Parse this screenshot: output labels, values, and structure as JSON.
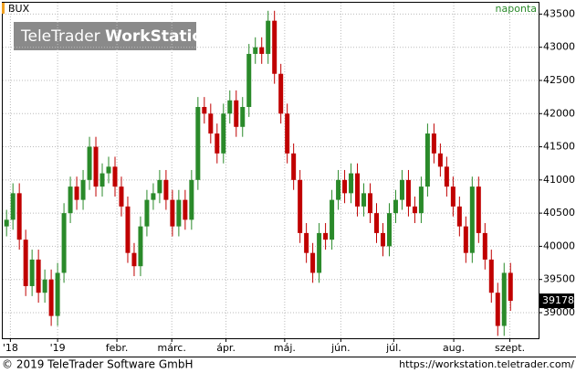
{
  "chart_data": {
    "type": "candlestick",
    "title": "BUX",
    "subtitle": "naponta",
    "logo": {
      "light": "TeleTrader",
      "bold": "WorkStation"
    },
    "footer_left": "© 2019 TeleTrader Software GmbH",
    "footer_right": "https://workstation.teletrader.com/",
    "up_color": "#2a8a2a",
    "down_color": "#c00000",
    "grid": true,
    "last_value_label": true,
    "open": [
      40300,
      40400,
      40800,
      40100,
      39400,
      39800,
      39300,
      39500,
      38950,
      39600,
      40500,
      40900,
      40700,
      41000,
      41500,
      40900,
      41100,
      41200,
      40900,
      40600,
      39900,
      39700,
      40300,
      40700,
      40800,
      41000,
      40700,
      40300,
      40700,
      40400,
      41000,
      42100,
      42000,
      41700,
      41400,
      42000,
      42200,
      41800,
      42100,
      42900,
      43000,
      42900,
      43400,
      42600,
      42000,
      41400,
      41000,
      40200,
      39900,
      39600,
      40200,
      40100,
      40700,
      41000,
      40800,
      41100,
      40600,
      40800,
      40500,
      40200,
      40000,
      40500,
      40700,
      41000,
      40600,
      40500,
      40900,
      41700,
      41400,
      41200,
      40900,
      40600,
      40300,
      39900,
      40900,
      40200,
      39800,
      39300,
      38800,
      39600
    ],
    "high": [
      40550,
      40950,
      40950,
      40250,
      39950,
      39950,
      39650,
      39650,
      39750,
      40650,
      41050,
      41050,
      41150,
      41650,
      41650,
      41250,
      41350,
      41350,
      41050,
      40750,
      40050,
      40450,
      40850,
      40950,
      41150,
      41150,
      40850,
      40850,
      40850,
      41150,
      42250,
      42250,
      42150,
      41850,
      42150,
      42350,
      42350,
      42250,
      43050,
      43150,
      43150,
      43550,
      43550,
      42750,
      42150,
      41550,
      41150,
      40350,
      40050,
      40350,
      40350,
      40850,
      41150,
      41150,
      41250,
      41250,
      40950,
      40950,
      40650,
      40350,
      40650,
      40850,
      41150,
      41150,
      40750,
      41050,
      41850,
      41850,
      41550,
      41350,
      41050,
      40750,
      40450,
      41050,
      41050,
      40350,
      39950,
      39450,
      39750,
      39750
    ],
    "low": [
      40150,
      40250,
      39950,
      39250,
      39250,
      39150,
      39150,
      38800,
      38800,
      39450,
      40350,
      40550,
      40550,
      40850,
      40750,
      40750,
      40950,
      40750,
      40450,
      39750,
      39550,
      39550,
      40150,
      40550,
      40650,
      40550,
      40150,
      40150,
      40250,
      40250,
      40850,
      41850,
      41550,
      41250,
      41250,
      41850,
      41650,
      41650,
      41950,
      42750,
      42750,
      42750,
      42450,
      41850,
      41250,
      40850,
      40050,
      39750,
      39450,
      39450,
      39950,
      39950,
      40550,
      40650,
      40650,
      40450,
      40450,
      40350,
      40050,
      39850,
      39850,
      40350,
      40550,
      40450,
      40350,
      40350,
      40750,
      41250,
      41050,
      40750,
      40450,
      40150,
      39750,
      39750,
      40050,
      39650,
      39150,
      38650,
      38650,
      39028
    ],
    "close": [
      40400,
      40800,
      40100,
      39400,
      39800,
      39300,
      39500,
      38950,
      39600,
      40500,
      40900,
      40700,
      41000,
      41500,
      40900,
      41100,
      41200,
      40900,
      40600,
      39900,
      39700,
      40300,
      40700,
      40800,
      41000,
      40700,
      40300,
      40700,
      40400,
      41000,
      42100,
      42000,
      41700,
      41400,
      42000,
      42200,
      41800,
      42100,
      42900,
      43000,
      42900,
      43400,
      42600,
      42000,
      41400,
      41000,
      40200,
      39900,
      39600,
      40200,
      40100,
      40700,
      41000,
      40800,
      41100,
      40600,
      40800,
      40500,
      40200,
      40000,
      40500,
      40700,
      41000,
      40600,
      40500,
      40900,
      41700,
      41400,
      41200,
      40900,
      40600,
      40300,
      39900,
      40900,
      40200,
      39800,
      39300,
      38800,
      39600,
      39178
    ],
    "xlim": [
      -0.6,
      83.4
    ],
    "xticks": [
      {
        "value": 0.6,
        "label": "'18"
      },
      {
        "value": 8,
        "label": "'19"
      },
      {
        "value": 17.3,
        "label": "febr."
      },
      {
        "value": 25.9,
        "label": "márc."
      },
      {
        "value": 34.4,
        "label": "ápr."
      },
      {
        "value": 43.6,
        "label": "máj."
      },
      {
        "value": 52.4,
        "label": "jún."
      },
      {
        "value": 60.7,
        "label": "júl."
      },
      {
        "value": 70.1,
        "label": "aug."
      },
      {
        "value": 78.9,
        "label": "szept."
      }
    ],
    "ylim": [
      38614,
      43671
    ],
    "yticks": [
      39000,
      39500,
      40000,
      40500,
      41000,
      41500,
      42000,
      42500,
      43000,
      43500
    ]
  }
}
